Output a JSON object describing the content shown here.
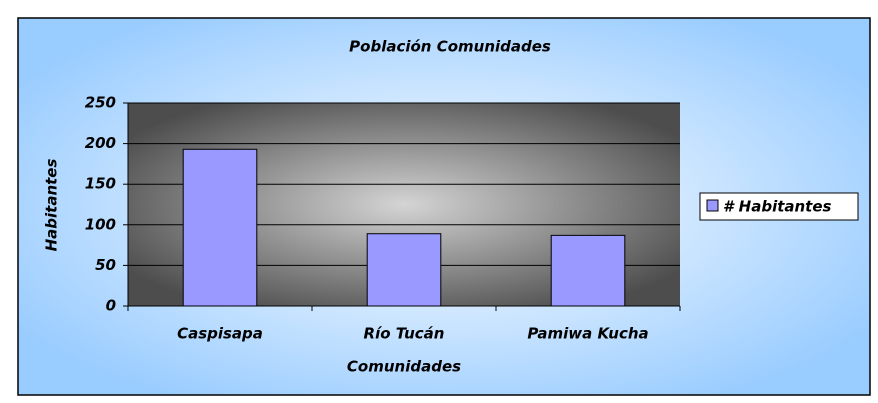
{
  "chart_data": {
    "type": "bar",
    "title": "Población Comunidades",
    "x_label": "Comunidades",
    "y_label": "Habitantes",
    "categories": [
      "Caspisapa",
      "Río Tucán",
      "Pamiwa Kucha"
    ],
    "series": [
      {
        "name": "# Habitantes",
        "color": "#9999ff",
        "values": [
          193,
          89,
          87
        ]
      }
    ],
    "ylim": [
      0,
      250
    ],
    "yticks": [
      0,
      50,
      100,
      150,
      200,
      250
    ],
    "grid": true,
    "legend": "right"
  }
}
